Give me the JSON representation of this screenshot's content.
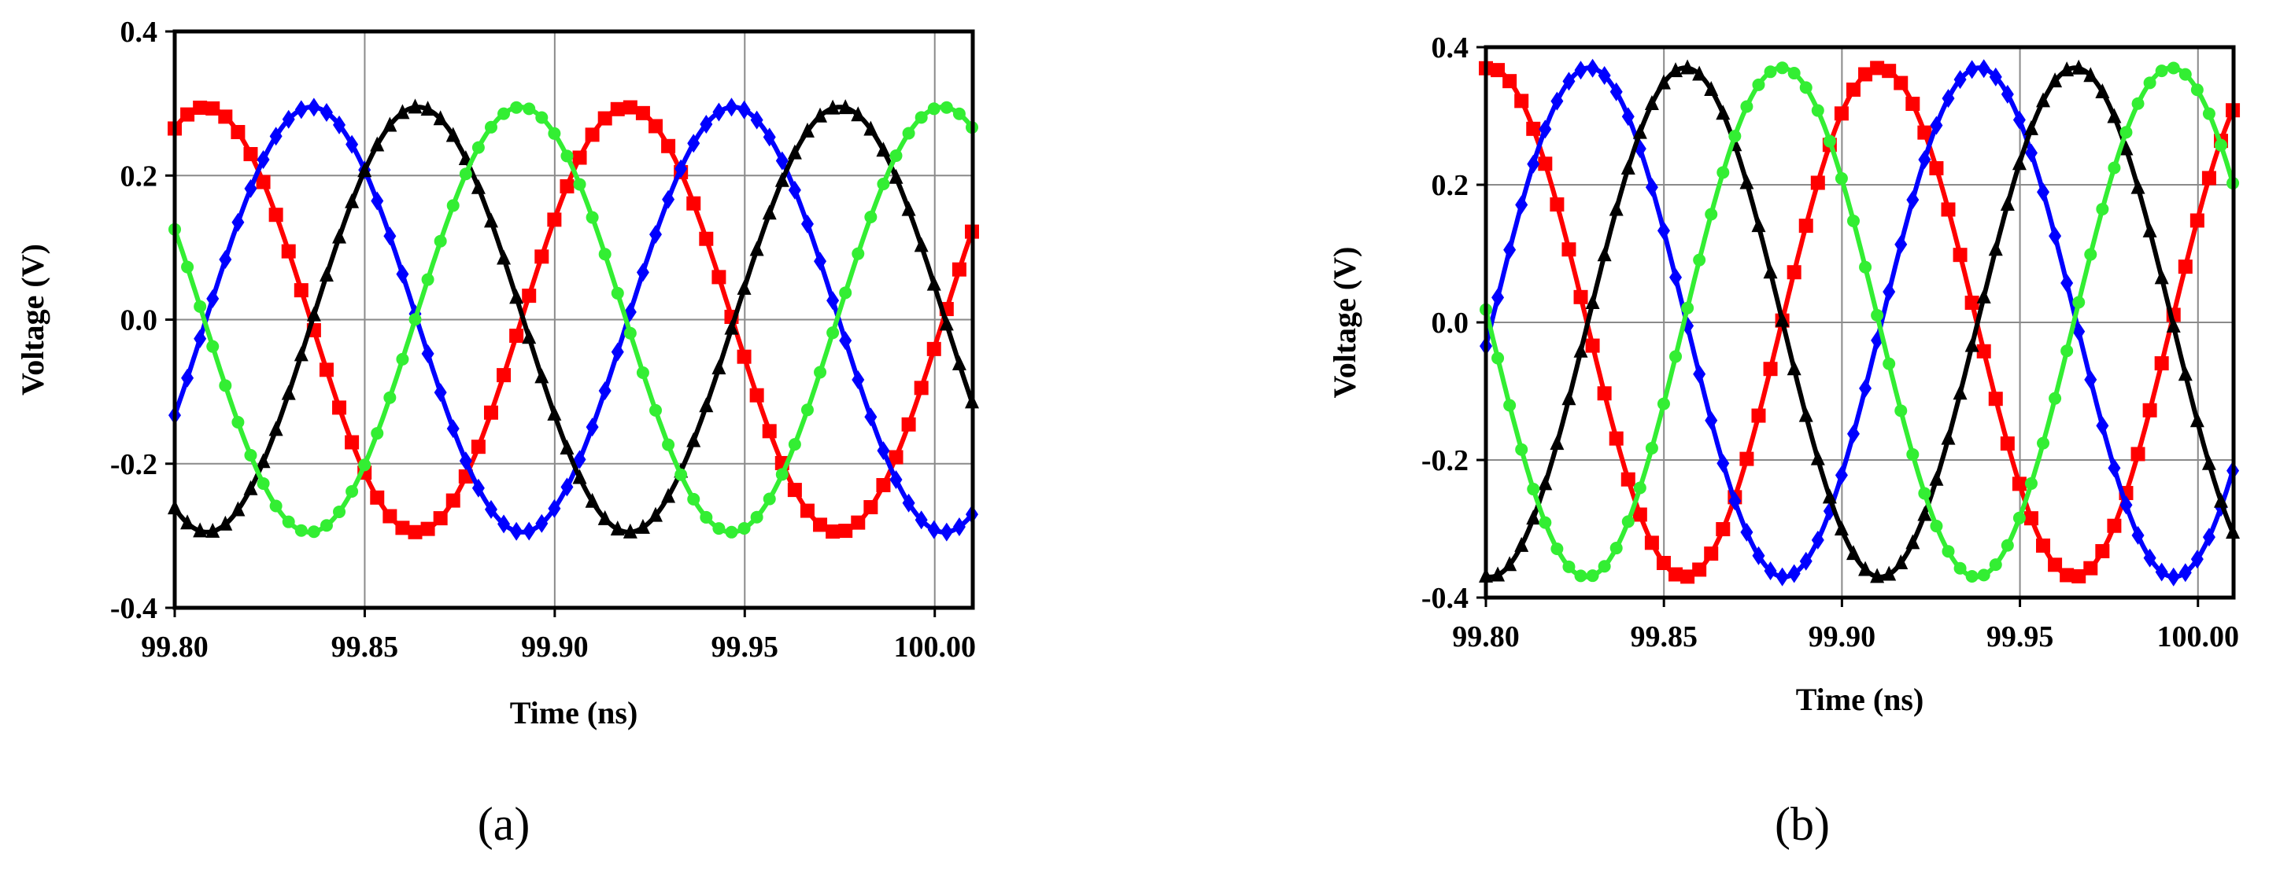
{
  "chart_data": [
    {
      "type": "line",
      "caption": "(a)",
      "xlabel": "Time (ns)",
      "ylabel": "Voltage (V)",
      "xlim": [
        99.8,
        100.01
      ],
      "ylim": [
        -0.4,
        0.4
      ],
      "x_ticks": [
        "99.80",
        "99.85",
        "99.90",
        "99.95",
        "100.00"
      ],
      "y_ticks": [
        "0.4",
        "0.2",
        "0.0",
        "-0.2",
        "-0.4"
      ],
      "grid": true,
      "amplitude": 0.295,
      "period_ns": 0.111,
      "sample_step_ns": 0.00333,
      "series": [
        {
          "color": "#ff0000",
          "marker": "square",
          "peak_times": [
            99.808,
            99.919
          ],
          "trough_times": [
            99.863,
            99.974
          ]
        },
        {
          "color": "#0000ff",
          "marker": "diamond",
          "peak_times": [
            99.836,
            99.947
          ],
          "trough_times": [
            99.891,
            100.002
          ]
        },
        {
          "color": "#000000",
          "marker": "triangle",
          "peak_times": [
            99.864,
            99.975
          ],
          "trough_times": [
            99.808,
            99.919
          ]
        },
        {
          "color": "#33ee33",
          "marker": "circle",
          "peak_times": [
            99.891,
            100.002
          ],
          "trough_times": [
            99.836,
            99.947
          ]
        }
      ]
    },
    {
      "type": "line",
      "caption": "(b)",
      "xlabel": "Time (ns)",
      "ylabel": "Voltage (V)",
      "xlim": [
        99.8,
        100.01
      ],
      "ylim": [
        -0.4,
        0.4
      ],
      "x_ticks": [
        "99.80",
        "99.85",
        "99.90",
        "99.95",
        "100.00"
      ],
      "y_ticks": [
        "0.4",
        "0.2",
        "0.0",
        "-0.2",
        "-0.4"
      ],
      "grid": true,
      "amplitude": 0.37,
      "period_ns": 0.1095,
      "sample_step_ns": 0.00333,
      "series": [
        {
          "color": "#ff0000",
          "marker": "square",
          "peak_times": [
            99.801,
            99.911
          ],
          "trough_times": [
            99.856,
            99.965
          ]
        },
        {
          "color": "#0000ff",
          "marker": "diamond",
          "peak_times": [
            99.829,
            99.938
          ],
          "trough_times": [
            99.883,
            99.993
          ]
        },
        {
          "color": "#000000",
          "marker": "triangle",
          "peak_times": [
            99.856,
            99.965
          ],
          "trough_times": [
            99.801,
            99.911
          ]
        },
        {
          "color": "#33ee33",
          "marker": "circle",
          "peak_times": [
            99.883,
            99.993
          ],
          "trough_times": [
            99.829,
            99.938
          ]
        }
      ]
    }
  ]
}
